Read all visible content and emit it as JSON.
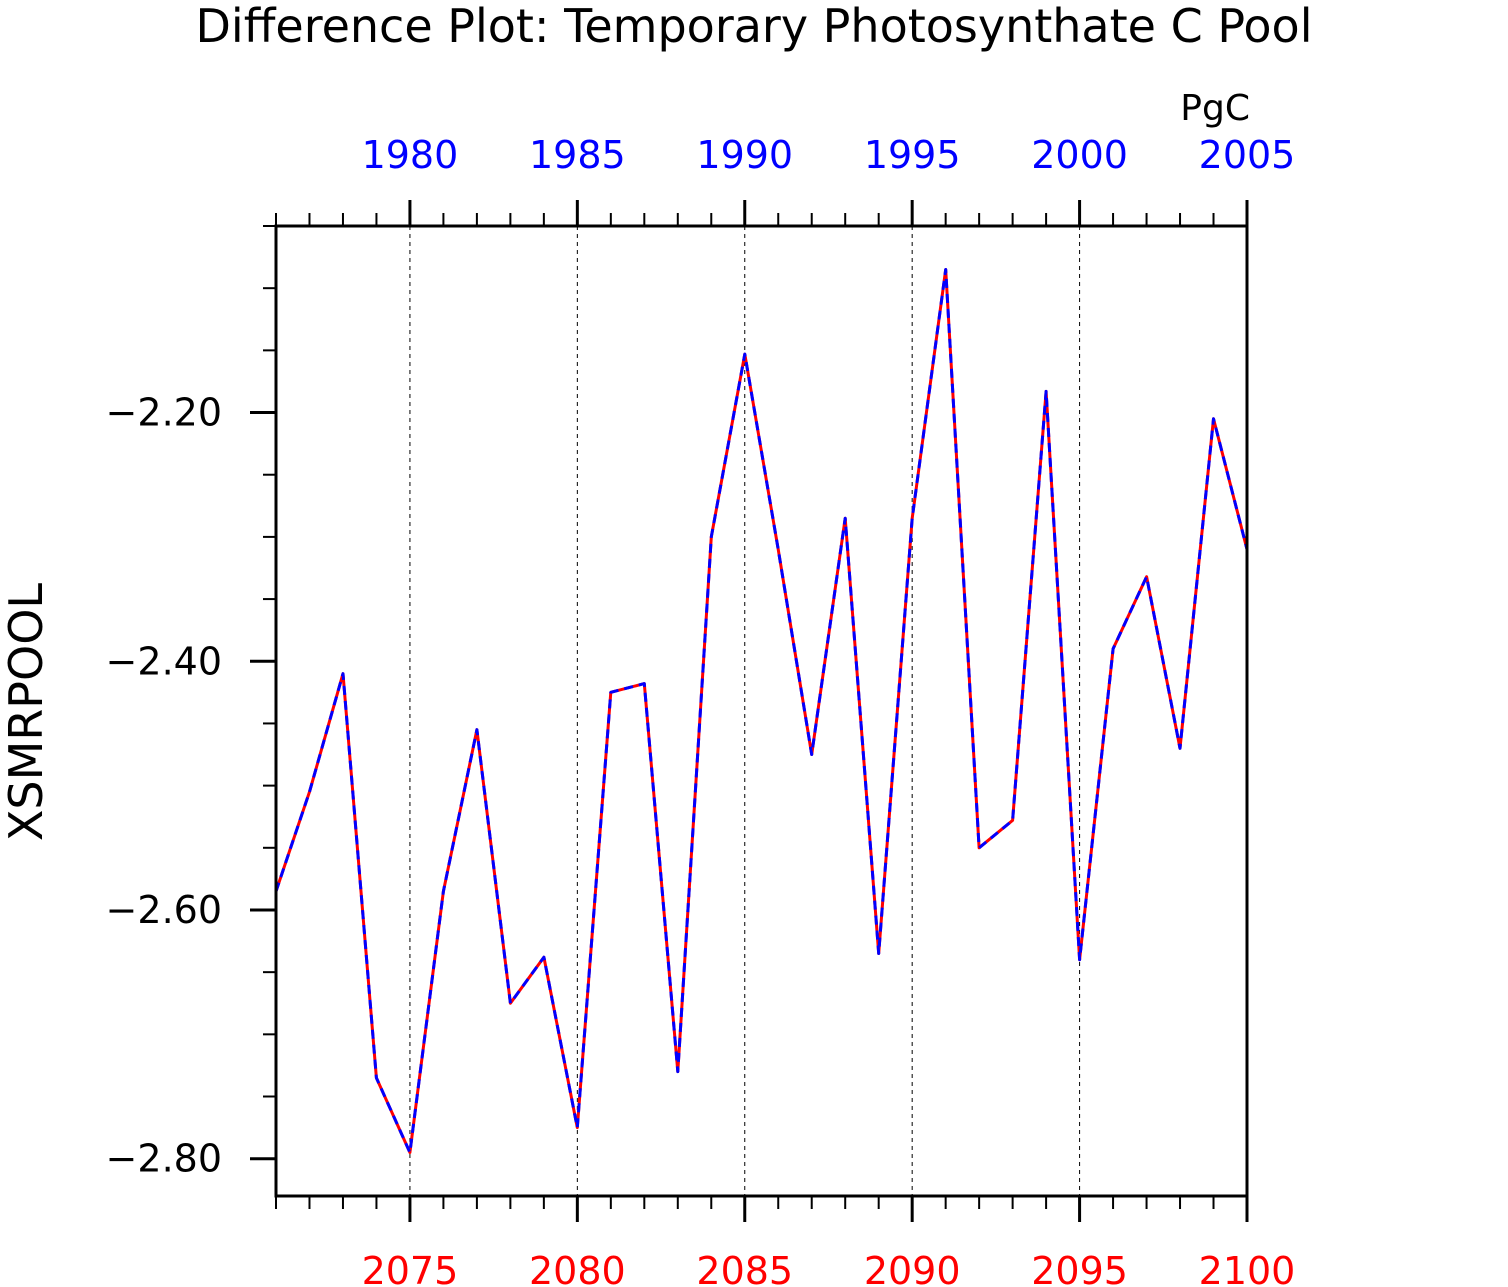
{
  "chart_data": {
    "type": "line",
    "title": "Difference Plot: Temporary Photosynthate C Pool",
    "units": "PgC",
    "ylabel": "XSMRPOOL",
    "xlabel": "",
    "ylim": [
      -2.83,
      -2.05
    ],
    "yticks": [
      -2.2,
      -2.4,
      -2.6,
      -2.8
    ],
    "ytick_labels": [
      "−2.20",
      "−2.40",
      "−2.60",
      "−2.80"
    ],
    "grid": "vertical dashed lines at major bottom-axis ticks",
    "bottom_axis": {
      "range": [
        2071,
        2100
      ],
      "ticks": [
        2075,
        2080,
        2085,
        2090,
        2095,
        2100
      ],
      "color": "#ff0000"
    },
    "top_axis": {
      "range": [
        1976,
        2005
      ],
      "ticks": [
        1980,
        1985,
        1990,
        1995,
        2000,
        2005
      ],
      "color": "#0000ff"
    },
    "x": [
      2071,
      2072,
      2073,
      2074,
      2075,
      2076,
      2077,
      2078,
      2079,
      2080,
      2081,
      2082,
      2083,
      2084,
      2085,
      2086,
      2087,
      2088,
      2089,
      2090,
      2091,
      2092,
      2093,
      2094,
      2095,
      2096,
      2097,
      2098,
      2099,
      2100
    ],
    "series": [
      {
        "color": "#ff0000",
        "style": "solid",
        "values": [
          -2.585,
          -2.505,
          -2.41,
          -2.735,
          -2.795,
          -2.585,
          -2.455,
          -2.675,
          -2.638,
          -2.775,
          -2.425,
          -2.418,
          -2.73,
          -2.3,
          -2.153,
          -2.31,
          -2.475,
          -2.285,
          -2.635,
          -2.285,
          -2.085,
          -2.55,
          -2.528,
          -2.183,
          -2.64,
          -2.39,
          -2.332,
          -2.47,
          -2.205,
          -2.31
        ]
      },
      {
        "color": "#0000ff",
        "style": "dashed",
        "values": [
          -2.585,
          -2.505,
          -2.41,
          -2.735,
          -2.795,
          -2.585,
          -2.455,
          -2.675,
          -2.638,
          -2.775,
          -2.425,
          -2.418,
          -2.73,
          -2.3,
          -2.153,
          -2.31,
          -2.475,
          -2.285,
          -2.635,
          -2.285,
          -2.085,
          -2.55,
          -2.528,
          -2.183,
          -2.64,
          -2.39,
          -2.332,
          -2.47,
          -2.205,
          -2.31
        ]
      }
    ]
  }
}
